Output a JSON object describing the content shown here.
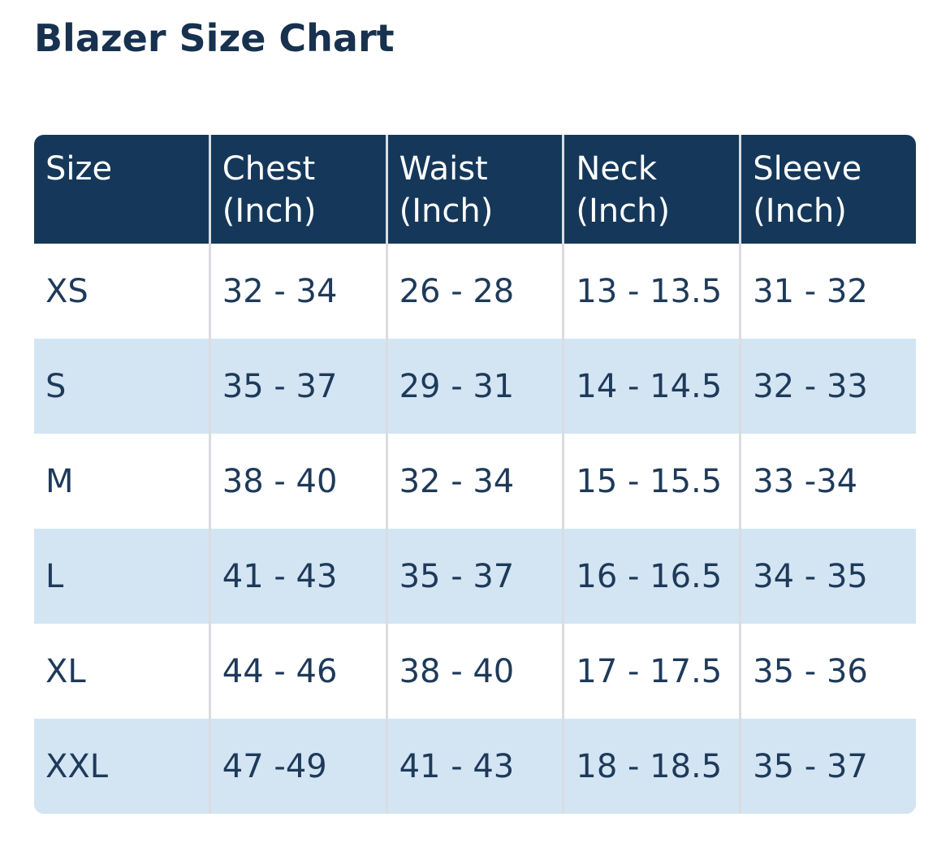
{
  "title": "Blazer Size Chart",
  "table": {
    "header": [
      "Size",
      "Chest (Inch)",
      "Waist (Inch)",
      "Neck (Inch)",
      "Sleeve (Inch)"
    ],
    "rows": [
      [
        "XS",
        "32 - 34",
        "26 - 28",
        "13 - 13.5",
        "31 - 32"
      ],
      [
        "S",
        "35 - 37",
        "29 - 31",
        "14 - 14.5",
        "32 - 33"
      ],
      [
        "M",
        "38 - 40",
        "32 - 34",
        "15 - 15.5",
        "33 -34"
      ],
      [
        "L",
        "41 - 43",
        "35 - 37",
        "16 - 16.5",
        "34 - 35"
      ],
      [
        "XL",
        "44 - 46",
        "38 - 40",
        "17 - 17.5",
        "35 - 36"
      ],
      [
        "XXL",
        "47 -49",
        "41 - 43",
        "18 - 18.5",
        "35 - 37"
      ]
    ]
  }
}
